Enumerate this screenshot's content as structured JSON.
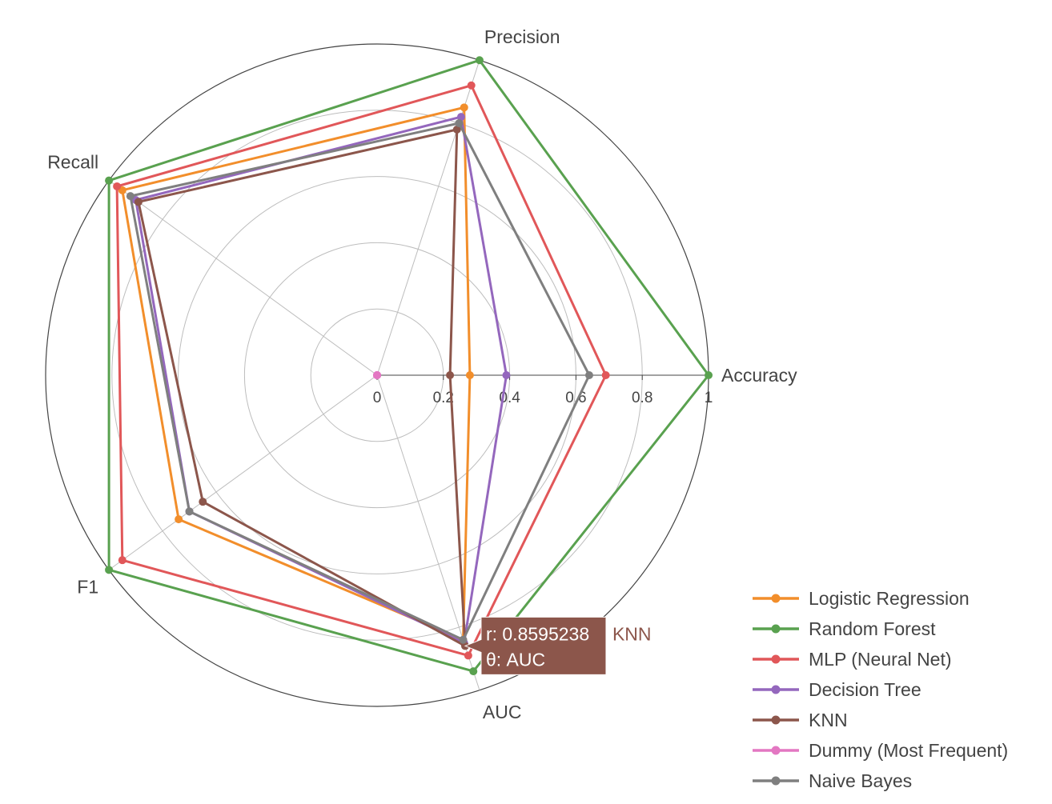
{
  "chart_data": {
    "type": "radar",
    "axes": [
      "Accuracy",
      "Precision",
      "Recall",
      "F1",
      "AUC"
    ],
    "radial_range": [
      0,
      1
    ],
    "radial_ticks": [
      "0",
      "0.2",
      "0.4",
      "0.6",
      "0.8",
      "1"
    ],
    "legend_position": "bottom-right",
    "series": [
      {
        "name": "Logistic Regression",
        "color": "#f28e2b",
        "values": [
          0.28,
          0.85,
          0.95,
          0.74,
          0.84
        ]
      },
      {
        "name": "Random Forest",
        "color": "#59a14f",
        "values": [
          1.0,
          1.0,
          1.0,
          1.0,
          0.94
        ]
      },
      {
        "name": "MLP (Neural Net)",
        "color": "#e15759",
        "values": [
          0.69,
          0.92,
          0.97,
          0.95,
          0.89
        ]
      },
      {
        "name": "Decision Tree",
        "color": "#9467bd",
        "values": [
          0.39,
          0.82,
          0.9,
          0.7,
          0.85
        ]
      },
      {
        "name": "KNN",
        "color": "#8c564b",
        "values": [
          0.22,
          0.78,
          0.89,
          0.65,
          0.8595238
        ]
      },
      {
        "name": "Dummy (Most Frequent)",
        "color": "#e377c2",
        "values": [
          0,
          0,
          0,
          0,
          0
        ]
      },
      {
        "name": "Naive Bayes",
        "color": "#7f7f7f",
        "values": [
          0.64,
          0.8,
          0.92,
          0.7,
          0.84
        ]
      }
    ],
    "hover_tooltip": {
      "series": "KNN",
      "r_text": "r: 0.8595238",
      "theta_text": "θ: AUC",
      "color": "#8c564b"
    }
  }
}
